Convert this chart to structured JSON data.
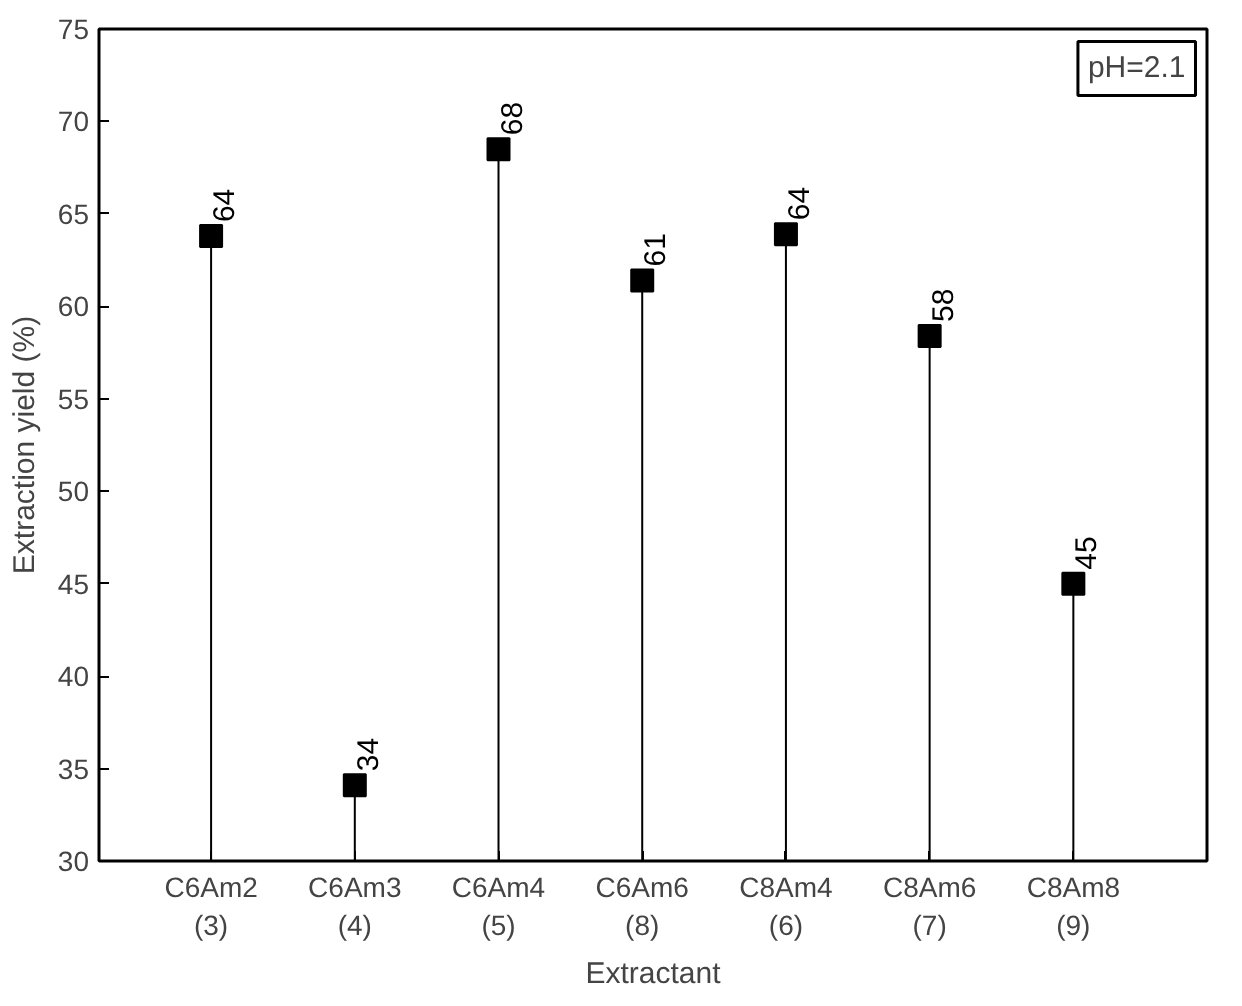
{
  "chart_data": {
    "type": "lollipop",
    "xlabel": "Extractant",
    "ylabel": "Extraction yield (%)",
    "categories": [
      "C6Am2\n(3)",
      "C6Am3\n(4)",
      "C6Am4\n(5)",
      "C6Am6\n(8)",
      "C8Am4\n(6)",
      "C8Am6\n(7)",
      "C8Am8\n(9)"
    ],
    "values": [
      63.8,
      34.1,
      68.5,
      61.4,
      63.9,
      58.4,
      45.0
    ],
    "value_labels": [
      "64",
      "34",
      "68",
      "61",
      "64",
      "58",
      "45"
    ],
    "color": "#000000",
    "marker": "square",
    "grid": false,
    "ylim": [
      30,
      75
    ],
    "yticks": [
      30,
      35,
      40,
      45,
      50,
      55,
      60,
      65,
      70,
      75
    ],
    "annotations": [
      "pH=2.1"
    ]
  }
}
